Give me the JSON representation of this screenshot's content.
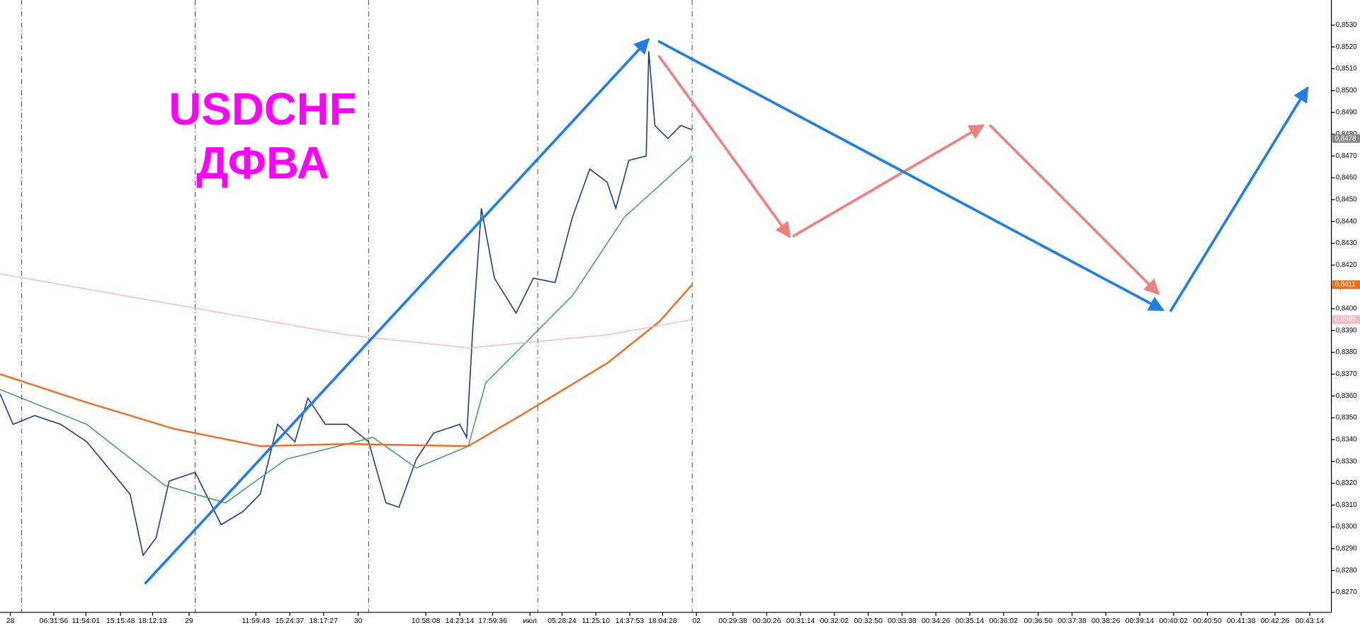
{
  "chart_data": {
    "type": "line",
    "title": "USDCHF",
    "subtitle": "ДФВА",
    "xlim": [
      0,
      1535
    ],
    "ylim": [
      0.82608,
      0.85415
    ],
    "yticks": [
      {
        "value": 0.827,
        "label": "0,8270"
      },
      {
        "value": 0.828,
        "label": "0,8280"
      },
      {
        "value": 0.829,
        "label": "0,8290"
      },
      {
        "value": 0.83,
        "label": "0,8300"
      },
      {
        "value": 0.831,
        "label": "0,8310"
      },
      {
        "value": 0.832,
        "label": "0,8320"
      },
      {
        "value": 0.833,
        "label": "0,8330"
      },
      {
        "value": 0.834,
        "label": "0,8340"
      },
      {
        "value": 0.835,
        "label": "0,8350"
      },
      {
        "value": 0.836,
        "label": "0,8360"
      },
      {
        "value": 0.837,
        "label": "0,8370"
      },
      {
        "value": 0.838,
        "label": "0,8380"
      },
      {
        "value": 0.839,
        "label": "0,8390"
      },
      {
        "value": 0.84,
        "label": "0,8400"
      },
      {
        "value": 0.841,
        "label": "0,8410"
      },
      {
        "value": 0.842,
        "label": "0,8420"
      },
      {
        "value": 0.843,
        "label": "0,8430"
      },
      {
        "value": 0.844,
        "label": "0,8440"
      },
      {
        "value": 0.845,
        "label": "0,8450"
      },
      {
        "value": 0.846,
        "label": "0,8460"
      },
      {
        "value": 0.847,
        "label": "0,8470"
      },
      {
        "value": 0.848,
        "label": "0,8480"
      },
      {
        "value": 0.849,
        "label": "0,8490"
      },
      {
        "value": 0.85,
        "label": "0,8500"
      },
      {
        "value": 0.851,
        "label": "0,8510"
      },
      {
        "value": 0.852,
        "label": "0,8520"
      },
      {
        "value": 0.853,
        "label": "0,8530"
      }
    ],
    "xticks": [
      {
        "value": 12,
        "label": "28"
      },
      {
        "value": 62,
        "label": "06:31:56"
      },
      {
        "value": 99,
        "label": "11:54:01"
      },
      {
        "value": 139,
        "label": "15:15:48"
      },
      {
        "value": 176,
        "label": "18:12:13"
      },
      {
        "value": 218,
        "label": "29"
      },
      {
        "value": 295,
        "label": "11:59:43"
      },
      {
        "value": 334,
        "label": "15:24:37"
      },
      {
        "value": 373,
        "label": "18:17:27"
      },
      {
        "value": 413,
        "label": "30"
      },
      {
        "value": 491,
        "label": "10:58:08"
      },
      {
        "value": 530,
        "label": "14:23:14"
      },
      {
        "value": 568,
        "label": "17:59:36"
      },
      {
        "value": 611,
        "label": "июл"
      },
      {
        "value": 648,
        "label": "05:28:24"
      },
      {
        "value": 687,
        "label": "11:25:10"
      },
      {
        "value": 726,
        "label": "14:37:53"
      },
      {
        "value": 764,
        "label": "18:04:28"
      },
      {
        "value": 803,
        "label": "02"
      },
      {
        "value": 845,
        "label": "00:29:38"
      },
      {
        "value": 884,
        "label": "00:30:26"
      },
      {
        "value": 923,
        "label": "00:31:14"
      },
      {
        "value": 962,
        "label": "00:32:02"
      },
      {
        "value": 1001,
        "label": "00:32:50"
      },
      {
        "value": 1040,
        "label": "00:33:38"
      },
      {
        "value": 1079,
        "label": "00:34:26"
      },
      {
        "value": 1118,
        "label": "00:35:14"
      },
      {
        "value": 1157,
        "label": "00:36:02"
      },
      {
        "value": 1197,
        "label": "00:36:50"
      },
      {
        "value": 1236,
        "label": "00:37:38"
      },
      {
        "value": 1275,
        "label": "00:38:26"
      },
      {
        "value": 1314,
        "label": "00:39:14"
      },
      {
        "value": 1353,
        "label": "00:40:02"
      },
      {
        "value": 1392,
        "label": "00:40:50"
      },
      {
        "value": 1431,
        "label": "00:41:38"
      },
      {
        "value": 1470,
        "label": "00:42:26"
      },
      {
        "value": 1510,
        "label": "00:43:14"
      }
    ],
    "separators": [
      25,
      225,
      425,
      620,
      798
    ],
    "series": [
      {
        "color": "#1a3a8a",
        "x": [
          0,
          15,
          40,
          70,
          100,
          125,
          150,
          165,
          180,
          195,
          225,
          255,
          280,
          300,
          320,
          340,
          355,
          375,
          400,
          425,
          445,
          460,
          480,
          500,
          530,
          538,
          545,
          555,
          570,
          595,
          615,
          640,
          660,
          680,
          700,
          710,
          725,
          745,
          748,
          755,
          770,
          785,
          798
        ],
        "values": [
          0.8361,
          0.8347,
          0.8351,
          0.8347,
          0.8339,
          0.8327,
          0.8315,
          0.8287,
          0.8295,
          0.8321,
          0.8325,
          0.8301,
          0.8307,
          0.8315,
          0.8347,
          0.8339,
          0.8359,
          0.8347,
          0.8347,
          0.8339,
          0.8311,
          0.8309,
          0.8331,
          0.8343,
          0.8347,
          0.8341,
          0.839,
          0.8446,
          0.8414,
          0.8398,
          0.8414,
          0.8412,
          0.8442,
          0.8464,
          0.8458,
          0.8446,
          0.8468,
          0.847,
          0.8518,
          0.8484,
          0.8478,
          0.8484,
          0.8482
        ]
      },
      {
        "color": "#3a9a5a",
        "x": [
          0,
          100,
          190,
          260,
          330,
          430,
          480,
          540,
          560,
          600,
          660,
          720,
          798
        ],
        "values": [
          0.8363,
          0.8347,
          0.8319,
          0.8311,
          0.8331,
          0.8341,
          0.8327,
          0.8337,
          0.8366,
          0.8382,
          0.8406,
          0.8442,
          0.847
        ]
      },
      {
        "color": "#f26a1b",
        "x": [
          0,
          100,
          200,
          300,
          400,
          540,
          600,
          700,
          760,
          798
        ],
        "values": [
          0.837,
          0.8357,
          0.8345,
          0.8337,
          0.8338,
          0.8337,
          0.8351,
          0.8375,
          0.8394,
          0.8411
        ]
      },
      {
        "color": "#f7b8c0",
        "x": [
          0,
          200,
          400,
          540,
          700,
          798
        ],
        "values": [
          0.8416,
          0.8402,
          0.8388,
          0.8382,
          0.8388,
          0.8395
        ]
      }
    ],
    "last_labels": [
      {
        "value": 0.8478,
        "label": "0,8478",
        "color": "#8a8a8a"
      },
      {
        "value": 0.8411,
        "label": "0,8411",
        "color": "#f26a1b"
      },
      {
        "value": 0.8395,
        "label": "0,8395",
        "color": "#f7b8c0"
      }
    ]
  }
}
